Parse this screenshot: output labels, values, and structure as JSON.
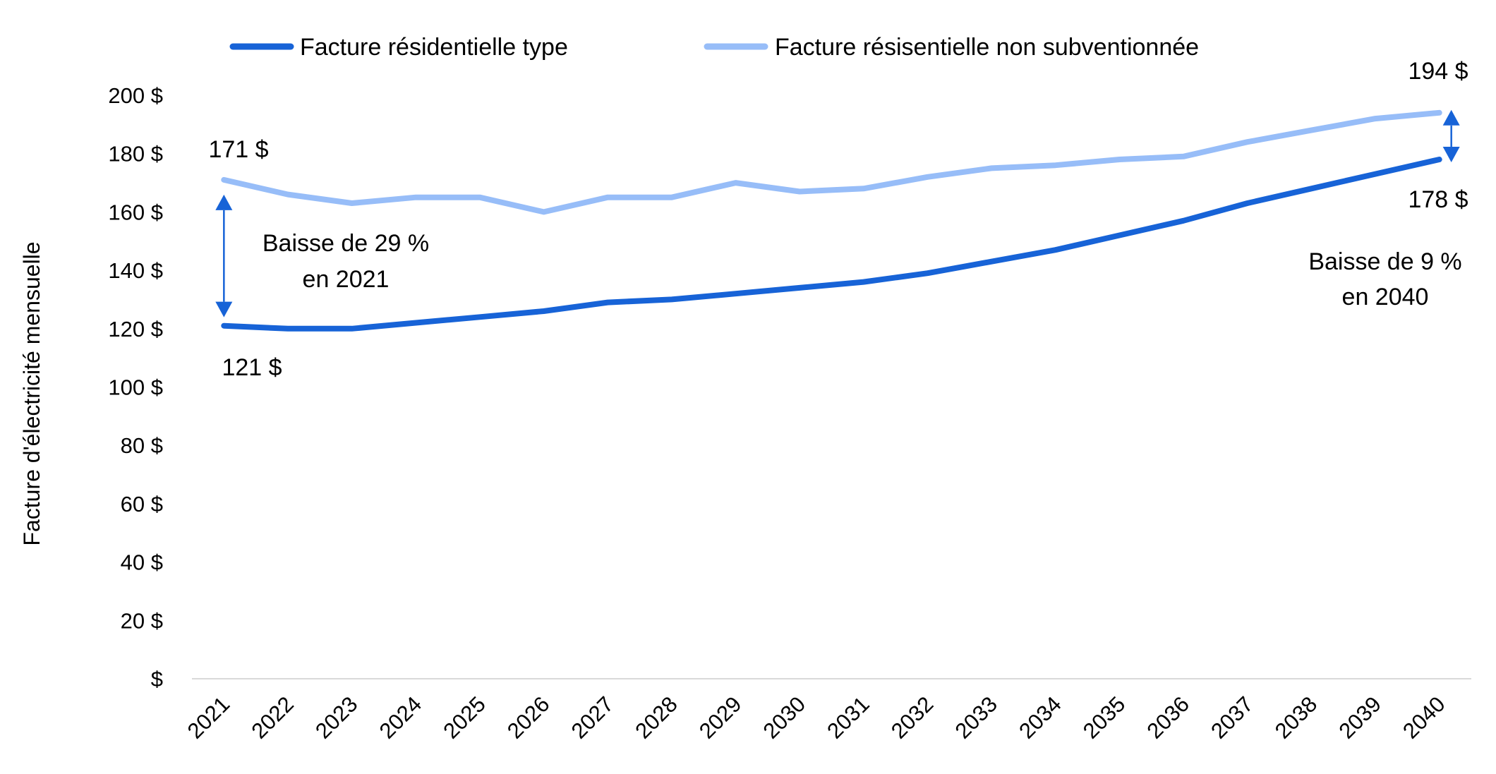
{
  "chart_data": {
    "type": "line",
    "title": "",
    "xlabel": "",
    "ylabel": "Facture d'électricité mensuelle",
    "ylim": [
      0,
      200
    ],
    "yticks": [
      "$",
      "20 $",
      "40 $",
      "60 $",
      "80 $",
      "100 $",
      "120 $",
      "140 $",
      "160 $",
      "180 $",
      "200 $"
    ],
    "x": [
      "2021",
      "2022",
      "2023",
      "2024",
      "2025",
      "2026",
      "2027",
      "2028",
      "2029",
      "2030",
      "2031",
      "2032",
      "2033",
      "2034",
      "2035",
      "2036",
      "2037",
      "2038",
      "2039",
      "2040"
    ],
    "legend_position": "top",
    "grid": false,
    "series": [
      {
        "name": "Facture résidentielle type",
        "color": "#1763D7",
        "values": [
          121,
          120,
          120,
          122,
          124,
          126,
          129,
          130,
          132,
          134,
          136,
          139,
          143,
          147,
          152,
          157,
          163,
          168,
          173,
          178
        ]
      },
      {
        "name": "Facture résisentielle non subventionnée",
        "color": "#97BDF8",
        "values": [
          171,
          166,
          163,
          165,
          165,
          160,
          165,
          165,
          170,
          167,
          168,
          172,
          175,
          176,
          178,
          179,
          184,
          188,
          192,
          194
        ]
      }
    ],
    "annotations": {
      "start_top_value": "171 $",
      "start_bottom_value": "121 $",
      "start_note_line1": "Baisse de 29 %",
      "start_note_line2": "en 2021",
      "end_top_value": "194 $",
      "end_bottom_value": "178 $",
      "end_note_line1": "Baisse de 9 %",
      "end_note_line2": "en 2040",
      "arrow_color": "#1763D7"
    }
  }
}
